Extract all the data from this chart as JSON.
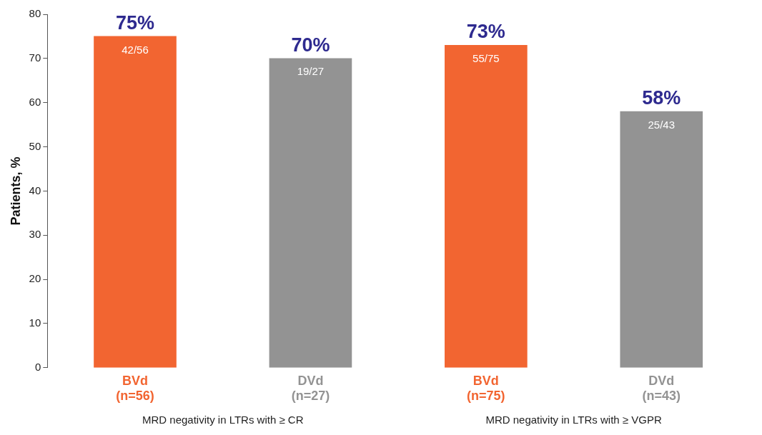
{
  "chart_data": {
    "type": "bar",
    "ylabel": "Patients, %",
    "categories": [
      "BVd\n(n=56)",
      "DVd\n(n=27)",
      "BVd\n(n=75)",
      "DVd\n(n=43)"
    ],
    "values": [
      75,
      70,
      73,
      58
    ],
    "colors": [
      "#f26531",
      "#939393",
      "#f26531",
      "#939393"
    ],
    "value_labels": [
      "75%",
      "70%",
      "73%",
      "58%"
    ],
    "ylim": [
      0,
      80
    ],
    "yticks": [
      0,
      10,
      20,
      30,
      40,
      50,
      60,
      70,
      80
    ],
    "grid": false,
    "legend": false,
    "annotations": [
      "42/56",
      "19/27",
      "55/75",
      "25/43",
      "MRD negativity in LTRs with ≥ CR",
      "MRD negativity in LTRs with ≥ VGPR"
    ]
  }
}
